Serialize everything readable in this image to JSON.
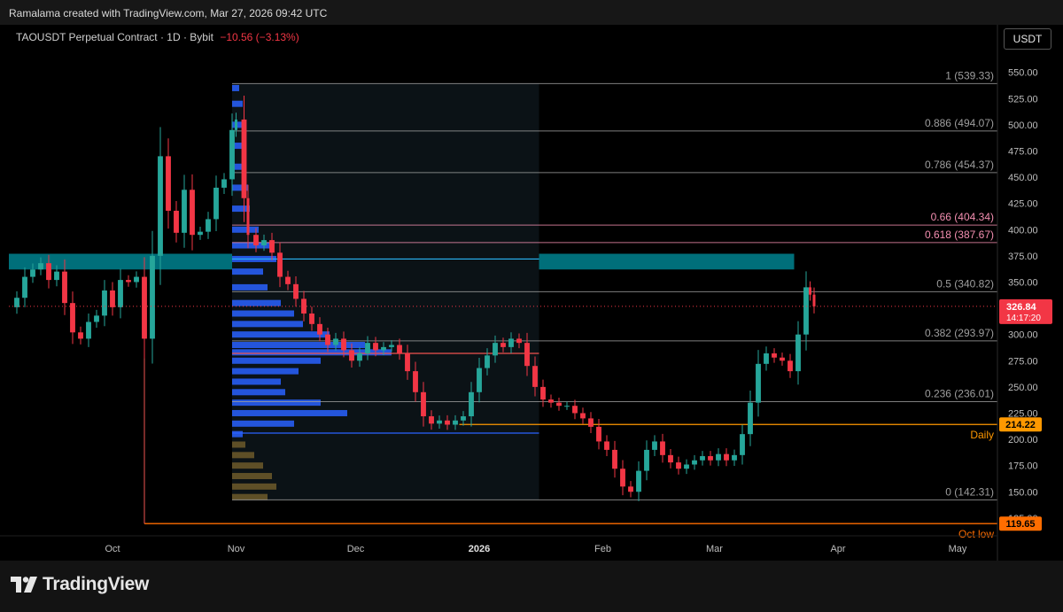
{
  "header": {
    "credit": "Ramalama created with TradingView.com, Mar 27, 2026 09:42 UTC"
  },
  "legend": {
    "symbol": "TAOUSDT Perpetual Contract · 1D · Bybit",
    "change": "−10.56 (−3.13%)"
  },
  "currency": "USDT",
  "brand": {
    "name": "TradingView"
  },
  "colors": {
    "up": "#26a69a",
    "down": "#f23645",
    "fib": "#9e9e9e",
    "zone": "#00838f",
    "orange": "#ff9800"
  },
  "chart_data": {
    "type": "candlestick",
    "y_ticks": [
      "550.00",
      "525.00",
      "500.00",
      "475.00",
      "450.00",
      "425.00",
      "400.00",
      "375.00",
      "350.00",
      "325.00",
      "300.00",
      "275.00",
      "250.00",
      "225.00",
      "200.00",
      "175.00",
      "150.00",
      "125.00"
    ],
    "y_tick_values": [
      550,
      525,
      500,
      475,
      450,
      425,
      400,
      375,
      350,
      325,
      300,
      275,
      250,
      225,
      200,
      175,
      150,
      125
    ],
    "ylim": [
      108,
      570
    ],
    "x_ticks": [
      {
        "label": "Oct",
        "day": 0
      },
      {
        "label": "Nov",
        "day": 31
      },
      {
        "label": "Dec",
        "day": 61
      },
      {
        "label": "2026",
        "day": 92,
        "bold": true
      },
      {
        "label": "Feb",
        "day": 123
      },
      {
        "label": "Mar",
        "day": 151
      },
      {
        "label": "Apr",
        "day": 182
      },
      {
        "label": "May",
        "day": 212
      }
    ],
    "x_range_days": [
      -26,
      222
    ],
    "fib_levels": [
      {
        "label": "1 (539.33)",
        "value": 539.33,
        "color": "#9e9e9e"
      },
      {
        "label": "0.886 (494.07)",
        "value": 494.07,
        "color": "#9e9e9e"
      },
      {
        "label": "0.786 (454.37)",
        "value": 454.37,
        "color": "#9e9e9e"
      },
      {
        "label": "0.66 (404.34)",
        "value": 404.34,
        "color": "#f48fb1"
      },
      {
        "label": "0.618 (387.67)",
        "value": 387.67,
        "color": "#f48fb1"
      },
      {
        "label": "0.5 (340.82)",
        "value": 340.82,
        "color": "#9e9e9e"
      },
      {
        "label": "0.382 (293.97)",
        "value": 293.97,
        "color": "#9e9e9e"
      },
      {
        "label": "0.236 (236.01)",
        "value": 236.01,
        "color": "#9e9e9e"
      },
      {
        "label": "0 (142.31)",
        "value": 142.31,
        "color": "#9e9e9e"
      }
    ],
    "resistance_zone": {
      "low": 362,
      "high": 377
    },
    "hlines": [
      {
        "label": "Daily",
        "value": 214.22,
        "color": "#ff9800"
      },
      {
        "label": "Oct low",
        "value": 119.65,
        "color": "#ff6d00"
      }
    ],
    "price_badges": [
      {
        "text": "214.22",
        "value": 214.22,
        "color": "#ff9800"
      },
      {
        "text": "119.65",
        "value": 119.65,
        "color": "#ff6d00"
      }
    ],
    "last_price": {
      "value": 326.84,
      "text": "326.84",
      "countdown": "14:17:20"
    },
    "closes": [
      [
        -26,
        326
      ],
      [
        -24,
        335
      ],
      [
        -22,
        355
      ],
      [
        -20,
        362
      ],
      [
        -18,
        368
      ],
      [
        -16,
        352
      ],
      [
        -14,
        360
      ],
      [
        -12,
        330
      ],
      [
        -10,
        302
      ],
      [
        -8,
        296
      ],
      [
        -6,
        312
      ],
      [
        -4,
        318
      ],
      [
        -2,
        342
      ],
      [
        0,
        326
      ],
      [
        2,
        352
      ],
      [
        4,
        350
      ],
      [
        6,
        355
      ],
      [
        8,
        296
      ],
      [
        10,
        375
      ],
      [
        12,
        470
      ],
      [
        14,
        418
      ],
      [
        16,
        397
      ],
      [
        18,
        438
      ],
      [
        20,
        395
      ],
      [
        22,
        398
      ],
      [
        24,
        410
      ],
      [
        26,
        440
      ],
      [
        28,
        448
      ],
      [
        30,
        495
      ],
      [
        31,
        505
      ],
      [
        33,
        430
      ],
      [
        34,
        395
      ],
      [
        36,
        385
      ],
      [
        38,
        390
      ],
      [
        40,
        378
      ],
      [
        42,
        355
      ],
      [
        44,
        348
      ],
      [
        46,
        334
      ],
      [
        48,
        320
      ],
      [
        50,
        310
      ],
      [
        52,
        300
      ],
      [
        54,
        290
      ],
      [
        56,
        296
      ],
      [
        58,
        285
      ],
      [
        60,
        275
      ],
      [
        62,
        282
      ],
      [
        64,
        292
      ],
      [
        66,
        285
      ],
      [
        68,
        288
      ],
      [
        70,
        290
      ],
      [
        72,
        282
      ],
      [
        74,
        265
      ],
      [
        76,
        245
      ],
      [
        78,
        222
      ],
      [
        80,
        215
      ],
      [
        82,
        218
      ],
      [
        84,
        214
      ],
      [
        86,
        218
      ],
      [
        88,
        222
      ],
      [
        90,
        245
      ],
      [
        92,
        268
      ],
      [
        94,
        280
      ],
      [
        96,
        292
      ],
      [
        98,
        288
      ],
      [
        100,
        296
      ],
      [
        102,
        292
      ],
      [
        104,
        270
      ],
      [
        106,
        250
      ],
      [
        108,
        238
      ],
      [
        110,
        235
      ],
      [
        112,
        232
      ],
      [
        114,
        232
      ],
      [
        116,
        225
      ],
      [
        118,
        220
      ],
      [
        120,
        212
      ],
      [
        122,
        198
      ],
      [
        124,
        190
      ],
      [
        126,
        172
      ],
      [
        128,
        155
      ],
      [
        130,
        150
      ],
      [
        132,
        170
      ],
      [
        134,
        190
      ],
      [
        136,
        198
      ],
      [
        138,
        185
      ],
      [
        140,
        178
      ],
      [
        142,
        172
      ],
      [
        144,
        176
      ],
      [
        146,
        180
      ],
      [
        148,
        184
      ],
      [
        150,
        180
      ],
      [
        152,
        186
      ],
      [
        154,
        180
      ],
      [
        156,
        185
      ],
      [
        158,
        205
      ],
      [
        160,
        235
      ],
      [
        162,
        272
      ],
      [
        164,
        282
      ],
      [
        166,
        278
      ],
      [
        168,
        275
      ],
      [
        170,
        265
      ],
      [
        172,
        300
      ],
      [
        174,
        345
      ],
      [
        175,
        338
      ],
      [
        176,
        326.84
      ]
    ],
    "volume_profile": {
      "start_day": 30,
      "end_day": 107,
      "bins": [
        [
          145,
          40
        ],
        [
          155,
          50
        ],
        [
          165,
          45
        ],
        [
          175,
          35
        ],
        [
          185,
          25
        ],
        [
          195,
          15
        ],
        [
          205,
          12
        ],
        [
          215,
          70
        ],
        [
          225,
          130
        ],
        [
          235,
          100
        ],
        [
          245,
          60
        ],
        [
          255,
          55
        ],
        [
          265,
          75
        ],
        [
          275,
          100
        ],
        [
          283,
          180
        ],
        [
          290,
          150
        ],
        [
          300,
          110
        ],
        [
          310,
          80
        ],
        [
          320,
          70
        ],
        [
          330,
          55
        ],
        [
          345,
          40
        ],
        [
          360,
          35
        ],
        [
          372,
          50
        ],
        [
          385,
          45
        ],
        [
          400,
          30
        ],
        [
          420,
          20
        ],
        [
          440,
          18
        ],
        [
          460,
          14
        ],
        [
          480,
          12
        ],
        [
          500,
          16
        ],
        [
          520,
          12
        ],
        [
          535,
          8
        ]
      ]
    },
    "profile_lines": [
      {
        "value": 372,
        "color": "#29b6f6",
        "end_day": 107
      },
      {
        "value": 282,
        "color": "#ef5350",
        "end_day": 107
      },
      {
        "value": 206,
        "color": "#2962ff",
        "end_day": 107
      }
    ]
  }
}
